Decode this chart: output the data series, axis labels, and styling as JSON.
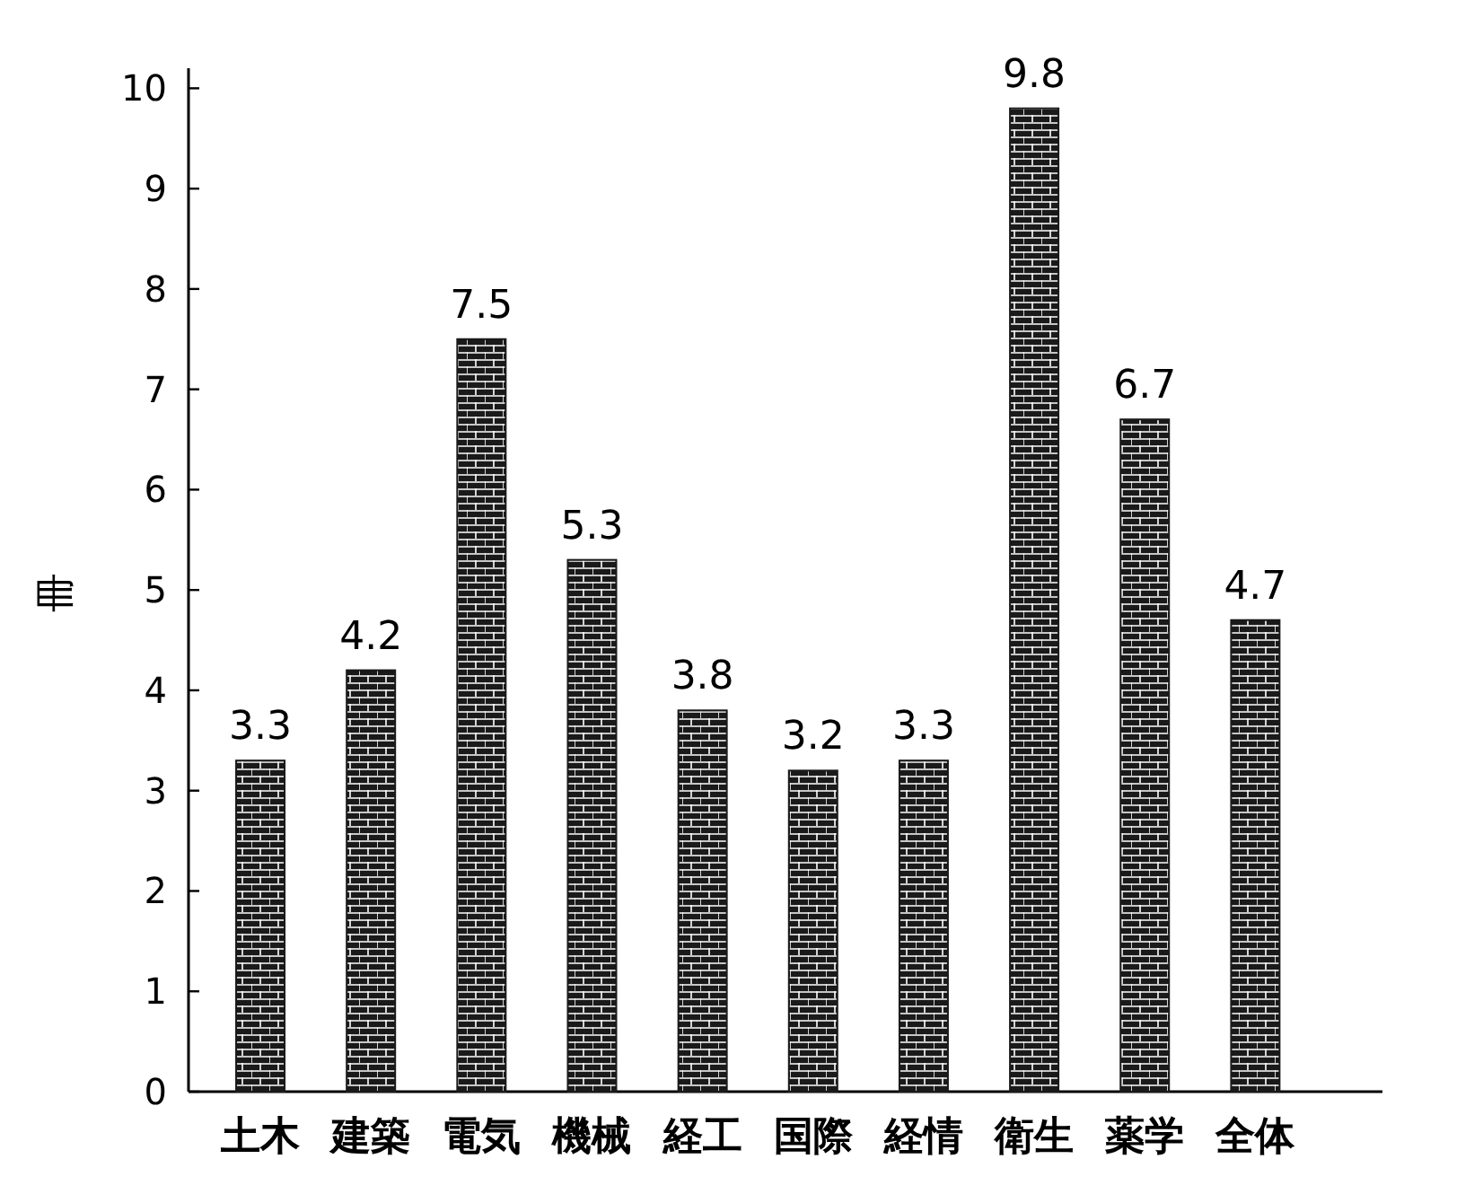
{
  "chart_data": {
    "type": "bar",
    "ylabel": "冊",
    "categories": [
      "土木",
      "建築",
      "電気",
      "機械",
      "経工",
      "国際",
      "経情",
      "衛生",
      "薬学",
      "全体"
    ],
    "values": [
      3.3,
      4.2,
      7.5,
      5.3,
      3.8,
      3.2,
      3.3,
      9.8,
      6.7,
      4.7
    ],
    "color": "#1a1a1a",
    "ylim": [
      0,
      10.2
    ],
    "yticks": [
      0,
      1,
      2,
      3,
      4,
      5,
      6,
      7,
      8,
      9,
      10
    ],
    "data_labels": true,
    "grid": false
  }
}
